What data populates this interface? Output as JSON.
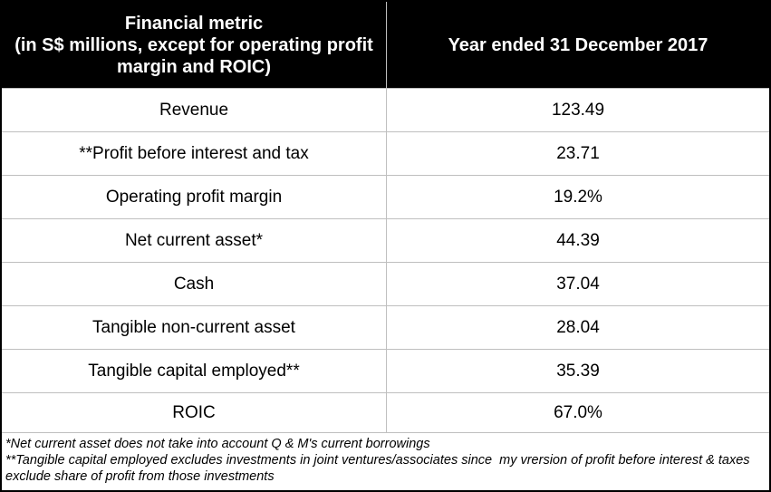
{
  "table": {
    "header": {
      "metric_lines": [
        "Financial metric",
        "(in S$ millions, except for operating profit",
        "margin and ROIC)"
      ],
      "year_column": "Year ended 31 December 2017"
    },
    "rows": [
      {
        "metric": "Revenue",
        "value": "123.49"
      },
      {
        "metric": "**Profit before interest and tax",
        "value": "23.71"
      },
      {
        "metric": "Operating profit margin",
        "value": "19.2%"
      },
      {
        "metric": "Net current asset*",
        "value": "44.39"
      },
      {
        "metric": "Cash",
        "value": "37.04"
      },
      {
        "metric": "Tangible non-current asset",
        "value": "28.04"
      },
      {
        "metric": "Tangible capital employed**",
        "value": "35.39"
      },
      {
        "metric": "ROIC",
        "value": "67.0%"
      }
    ],
    "footnotes": [
      "*Net current asset does not take into account Q & M's current borrowings",
      "**Tangible capital employed excludes investments in joint ventures/associates since  my vrersion of profit before interest & taxes exclude share of profit from those investments"
    ],
    "colors": {
      "header_bg": "#000000",
      "header_text": "#ffffff",
      "grid_line": "#bfbfbf",
      "outer_border": "#000000",
      "body_text": "#000000"
    }
  }
}
